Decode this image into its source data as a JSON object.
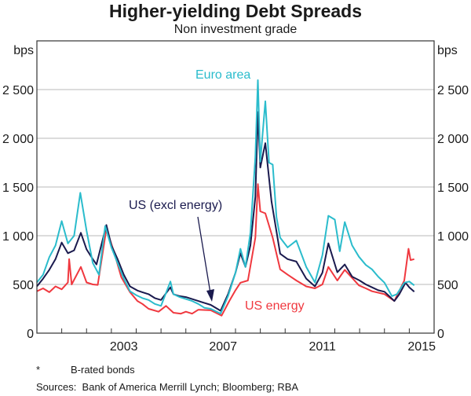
{
  "chart_data": {
    "type": "line",
    "title": "Higher-yielding Debt Spreads",
    "subtitle": "Non investment grade",
    "ylabel_left": "bps",
    "ylabel_right": "bps",
    "xlim": [
      2000,
      2016
    ],
    "ylim": [
      0,
      3000
    ],
    "yticks": [
      0,
      500,
      1000,
      1500,
      2000,
      2500
    ],
    "ytick_labels": [
      "0",
      "500",
      "1 000",
      "1 500",
      "2 000",
      "2 500"
    ],
    "xtick_labels": [
      {
        "label": "2003",
        "year": 2003
      },
      {
        "label": "2007",
        "year": 2007
      },
      {
        "label": "2011",
        "year": 2011
      },
      {
        "label": "2015",
        "year": 2015
      }
    ],
    "grid": true,
    "series": [
      {
        "name": "Euro area",
        "color": "#2bbccc",
        "points": [
          [
            2000.0,
            520
          ],
          [
            2000.25,
            600
          ],
          [
            2000.5,
            780
          ],
          [
            2000.75,
            900
          ],
          [
            2001.0,
            1150
          ],
          [
            2001.25,
            920
          ],
          [
            2001.5,
            1000
          ],
          [
            2001.75,
            1440
          ],
          [
            2002.0,
            1050
          ],
          [
            2002.25,
            720
          ],
          [
            2002.5,
            600
          ],
          [
            2002.75,
            1100
          ],
          [
            2003.0,
            880
          ],
          [
            2003.25,
            720
          ],
          [
            2003.5,
            560
          ],
          [
            2003.75,
            430
          ],
          [
            2004.0,
            390
          ],
          [
            2004.25,
            360
          ],
          [
            2004.5,
            340
          ],
          [
            2004.75,
            300
          ],
          [
            2005.0,
            280
          ],
          [
            2005.38,
            530
          ],
          [
            2005.5,
            400
          ],
          [
            2005.75,
            370
          ],
          [
            2006.0,
            350
          ],
          [
            2006.25,
            330
          ],
          [
            2006.5,
            300
          ],
          [
            2006.75,
            260
          ],
          [
            2007.0,
            250
          ],
          [
            2007.4,
            200
          ],
          [
            2007.7,
            380
          ],
          [
            2008.0,
            620
          ],
          [
            2008.2,
            866
          ],
          [
            2008.4,
            680
          ],
          [
            2008.6,
            1030
          ],
          [
            2008.8,
            1810
          ],
          [
            2008.9,
            2597
          ],
          [
            2009.0,
            1760
          ],
          [
            2009.2,
            2380
          ],
          [
            2009.35,
            1750
          ],
          [
            2009.5,
            1730
          ],
          [
            2009.65,
            1190
          ],
          [
            2009.8,
            980
          ],
          [
            2010.1,
            880
          ],
          [
            2010.45,
            950
          ],
          [
            2010.85,
            680
          ],
          [
            2011.2,
            520
          ],
          [
            2011.5,
            800
          ],
          [
            2011.74,
            1205
          ],
          [
            2012.0,
            1165
          ],
          [
            2012.2,
            840
          ],
          [
            2012.4,
            1140
          ],
          [
            2012.7,
            900
          ],
          [
            2012.97,
            785
          ],
          [
            2013.25,
            700
          ],
          [
            2013.5,
            655
          ],
          [
            2013.75,
            580
          ],
          [
            2014.0,
            518
          ],
          [
            2014.3,
            380
          ],
          [
            2014.5,
            400
          ],
          [
            2014.8,
            518
          ],
          [
            2015.0,
            530
          ],
          [
            2015.2,
            490
          ]
        ]
      },
      {
        "name": "US (excl energy)",
        "color": "#1a1a4e",
        "points": [
          [
            2000.0,
            480
          ],
          [
            2000.25,
            560
          ],
          [
            2000.5,
            650
          ],
          [
            2000.75,
            760
          ],
          [
            2001.0,
            930
          ],
          [
            2001.25,
            820
          ],
          [
            2001.5,
            850
          ],
          [
            2001.77,
            1030
          ],
          [
            2002.0,
            860
          ],
          [
            2002.25,
            760
          ],
          [
            2002.4,
            705
          ],
          [
            2002.8,
            1110
          ],
          [
            2003.0,
            900
          ],
          [
            2003.25,
            760
          ],
          [
            2003.5,
            600
          ],
          [
            2003.75,
            480
          ],
          [
            2004.05,
            437
          ],
          [
            2004.25,
            420
          ],
          [
            2004.5,
            400
          ],
          [
            2004.75,
            360
          ],
          [
            2005.0,
            340
          ],
          [
            2005.38,
            470
          ],
          [
            2005.5,
            400
          ],
          [
            2005.75,
            380
          ],
          [
            2006.0,
            370
          ],
          [
            2006.25,
            350
          ],
          [
            2006.5,
            330
          ],
          [
            2006.75,
            310
          ],
          [
            2007.0,
            290
          ],
          [
            2007.4,
            230
          ],
          [
            2007.7,
            400
          ],
          [
            2008.0,
            620
          ],
          [
            2008.2,
            820
          ],
          [
            2008.4,
            680
          ],
          [
            2008.6,
            900
          ],
          [
            2008.8,
            1400
          ],
          [
            2008.9,
            2270
          ],
          [
            2009.0,
            1700
          ],
          [
            2009.2,
            1950
          ],
          [
            2009.45,
            1350
          ],
          [
            2009.8,
            815
          ],
          [
            2010.1,
            760
          ],
          [
            2010.45,
            735
          ],
          [
            2010.85,
            560
          ],
          [
            2011.2,
            480
          ],
          [
            2011.5,
            620
          ],
          [
            2011.74,
            922
          ],
          [
            2012.1,
            625
          ],
          [
            2012.4,
            705
          ],
          [
            2012.7,
            580
          ],
          [
            2013.0,
            540
          ],
          [
            2013.25,
            500
          ],
          [
            2013.5,
            470
          ],
          [
            2013.75,
            440
          ],
          [
            2014.0,
            425
          ],
          [
            2014.4,
            330
          ],
          [
            2014.6,
            400
          ],
          [
            2014.85,
            518
          ],
          [
            2015.0,
            470
          ],
          [
            2015.2,
            425
          ]
        ]
      },
      {
        "name": "US energy",
        "color": "#f0383f",
        "points": [
          [
            2000.0,
            430
          ],
          [
            2000.25,
            460
          ],
          [
            2000.5,
            420
          ],
          [
            2000.75,
            480
          ],
          [
            2001.0,
            450
          ],
          [
            2001.25,
            520
          ],
          [
            2001.3,
            760
          ],
          [
            2001.4,
            500
          ],
          [
            2001.77,
            680
          ],
          [
            2002.0,
            520
          ],
          [
            2002.25,
            500
          ],
          [
            2002.45,
            495
          ],
          [
            2002.8,
            1070
          ],
          [
            2003.1,
            840
          ],
          [
            2003.4,
            575
          ],
          [
            2003.75,
            420
          ],
          [
            2004.05,
            330
          ],
          [
            2004.25,
            300
          ],
          [
            2004.5,
            250
          ],
          [
            2004.9,
            220
          ],
          [
            2005.2,
            280
          ],
          [
            2005.5,
            210
          ],
          [
            2005.8,
            200
          ],
          [
            2006.0,
            220
          ],
          [
            2006.25,
            200
          ],
          [
            2006.5,
            240
          ],
          [
            2007.0,
            235
          ],
          [
            2007.44,
            180
          ],
          [
            2007.75,
            330
          ],
          [
            2008.0,
            440
          ],
          [
            2008.2,
            518
          ],
          [
            2008.5,
            540
          ],
          [
            2008.8,
            980
          ],
          [
            2008.9,
            1530
          ],
          [
            2009.0,
            1250
          ],
          [
            2009.2,
            1230
          ],
          [
            2009.5,
            980
          ],
          [
            2009.8,
            655
          ],
          [
            2010.1,
            600
          ],
          [
            2010.45,
            540
          ],
          [
            2010.85,
            480
          ],
          [
            2011.2,
            460
          ],
          [
            2011.5,
            500
          ],
          [
            2011.74,
            680
          ],
          [
            2012.1,
            540
          ],
          [
            2012.4,
            650
          ],
          [
            2012.97,
            490
          ],
          [
            2013.25,
            460
          ],
          [
            2013.5,
            430
          ],
          [
            2014.0,
            400
          ],
          [
            2014.4,
            330
          ],
          [
            2014.8,
            540
          ],
          [
            2014.97,
            866
          ],
          [
            2015.05,
            750
          ],
          [
            2015.2,
            760
          ]
        ]
      }
    ],
    "annotations": [
      {
        "text": "Euro area",
        "series": "Euro area"
      },
      {
        "text": "US (excl energy)",
        "series": "US (excl energy)"
      },
      {
        "text": "US energy",
        "series": "US energy"
      }
    ]
  },
  "footnotes": {
    "asterisk_mark": "*",
    "asterisk_text": "B-rated bonds",
    "sources_label": "Sources:",
    "sources_text": "Bank of America Merrill Lynch; Bloomberg; RBA"
  }
}
